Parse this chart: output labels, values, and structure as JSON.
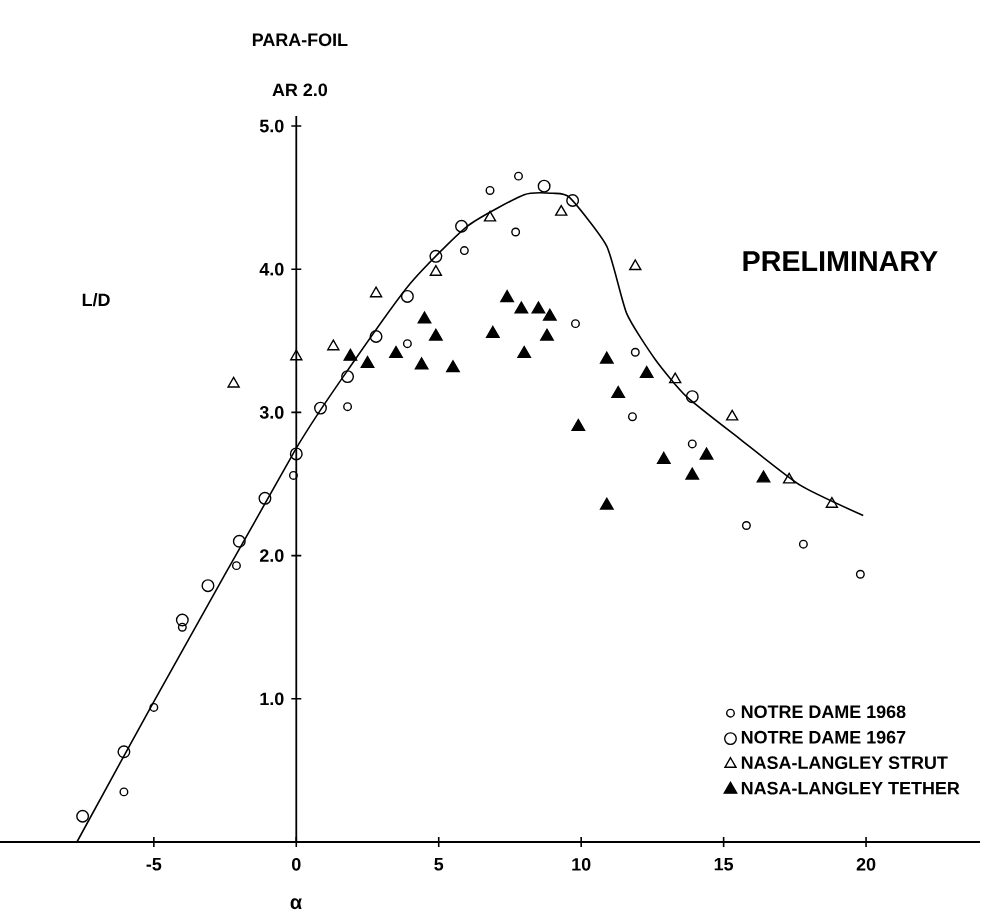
{
  "chart_data": {
    "type": "scatter",
    "title": "PARA-FOIL",
    "subtitle": "AR 2.0",
    "xlabel": "α",
    "ylabel": "L/D",
    "annotations": [
      "PRELIMINARY"
    ],
    "xlim": [
      -10.4,
      24
    ],
    "ylim": [
      0,
      5.07
    ],
    "xticks": [
      -5,
      0,
      5,
      10,
      15,
      20
    ],
    "yticks": [
      {
        "value": 1,
        "label": "1.0"
      },
      {
        "value": 2,
        "label": "2.0"
      },
      {
        "value": 3,
        "label": "3.0"
      },
      {
        "value": 4,
        "label": "4.0"
      },
      {
        "value": 5,
        "label": "5.0"
      }
    ],
    "legend": "bottom right",
    "grid": false,
    "series": [
      {
        "name": "NOTRE DAME 1968",
        "color": "#000000",
        "marker": "circle",
        "x": [
          -6.05,
          -5.0,
          -4.0,
          -2.1,
          -0.1,
          1.8,
          3.9,
          5.9,
          6.8,
          7.8,
          7.7,
          9.8,
          11.9,
          11.8,
          13.9,
          15.8,
          17.8,
          19.8
        ],
        "values": [
          0.35,
          0.94,
          1.5,
          1.93,
          2.56,
          3.04,
          3.48,
          4.13,
          4.55,
          4.65,
          4.26,
          3.62,
          3.42,
          2.97,
          2.78,
          2.21,
          2.08,
          1.87
        ]
      },
      {
        "name": "NOTRE DAME 1967",
        "color": "#000000",
        "marker": "circle",
        "x": [
          -7.5,
          -6.05,
          -4.0,
          -3.1,
          -2.0,
          -1.1,
          0.0,
          0.85,
          1.8,
          2.8,
          3.9,
          4.9,
          5.8,
          8.7,
          9.7,
          13.9
        ],
        "values": [
          0.18,
          0.63,
          1.55,
          1.79,
          2.1,
          2.4,
          2.71,
          3.03,
          3.25,
          3.53,
          3.81,
          4.09,
          4.3,
          4.58,
          4.48,
          3.11
        ]
      },
      {
        "name": "NASA-LANGLEY STRUT",
        "color": "#000000",
        "marker": "triangle",
        "x": [
          -2.2,
          0.0,
          1.3,
          2.8,
          4.9,
          6.8,
          9.3,
          11.9,
          13.3,
          15.3,
          17.3,
          18.8
        ],
        "values": [
          3.2,
          3.39,
          3.46,
          3.83,
          3.98,
          4.36,
          4.4,
          4.02,
          3.23,
          2.97,
          2.53,
          2.36
        ]
      },
      {
        "name": "NASA-LANGLEY TETHER",
        "color": "#000000",
        "marker": "triangle",
        "x": [
          1.9,
          2.5,
          3.5,
          4.5,
          4.9,
          4.4,
          5.5,
          6.9,
          7.4,
          7.9,
          8.5,
          8.9,
          8.8,
          8.0,
          9.9,
          10.9,
          12.3,
          11.3,
          12.9,
          14.4,
          13.9,
          16.4,
          10.9
        ],
        "values": [
          3.39,
          3.34,
          3.41,
          3.65,
          3.53,
          3.33,
          3.31,
          3.55,
          3.8,
          3.72,
          3.72,
          3.67,
          3.53,
          3.41,
          2.9,
          3.37,
          3.27,
          3.13,
          2.67,
          2.7,
          2.56,
          2.54,
          2.35
        ]
      },
      {
        "type": "line",
        "color": "#000000",
        "marker": "none",
        "line_style": "solid",
        "x": [
          -7.7,
          -5.0,
          0.0,
          2.0,
          4.0,
          6.0,
          8.0,
          9.0,
          9.6,
          10.9,
          11.6,
          12.6,
          13.7,
          15.6,
          17.7,
          19.9
        ],
        "values": [
          0.0,
          0.98,
          2.75,
          3.35,
          3.9,
          4.3,
          4.52,
          4.53,
          4.5,
          4.16,
          3.69,
          3.37,
          3.11,
          2.81,
          2.49,
          2.28
        ]
      }
    ]
  }
}
